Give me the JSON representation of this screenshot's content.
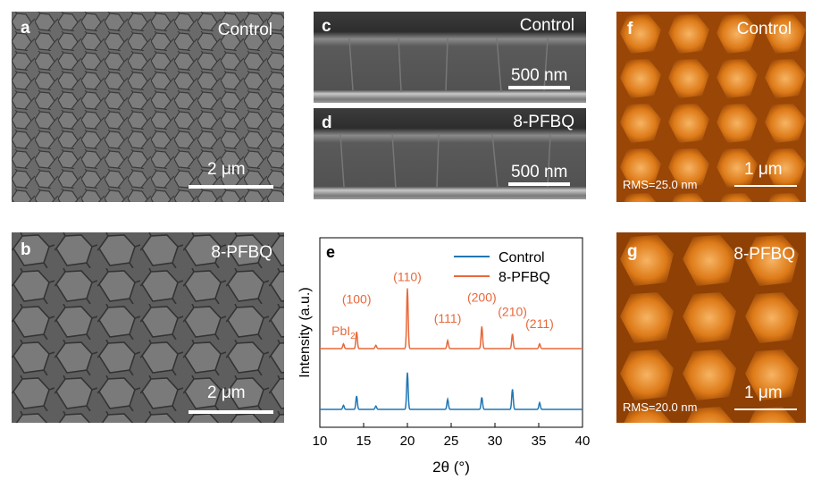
{
  "figure": {
    "panel_a": {
      "label": "a",
      "sample": "Control",
      "scalebar": "2 μm"
    },
    "panel_b": {
      "label": "b",
      "sample": "8-PFBQ",
      "scalebar": "2 μm"
    },
    "panel_c": {
      "label": "c",
      "sample": "Control",
      "scalebar": "500 nm"
    },
    "panel_d": {
      "label": "d",
      "sample": "8-PFBQ",
      "scalebar": "500 nm"
    },
    "panel_f": {
      "label": "f",
      "sample": "Control",
      "scalebar": "1 μm",
      "rms": "RMS=25.0 nm"
    },
    "panel_g": {
      "label": "g",
      "sample": "8-PFBQ",
      "scalebar": "1 μm",
      "rms": "RMS=20.0 nm"
    },
    "panel_e": {
      "label": "e"
    }
  },
  "colors": {
    "control": "#1f77b4",
    "pfbq": "#e8683a",
    "sem_gray": "#6e6e6e",
    "afm_orange": "#d9740f"
  },
  "chart_data": {
    "type": "line",
    "xlabel": "2θ (°)",
    "ylabel": "Intensity (a.u.)",
    "xlim": [
      10,
      40
    ],
    "xticks": [
      "10",
      "15",
      "20",
      "25",
      "30",
      "35",
      "40"
    ],
    "legend_position": "top-right",
    "series": [
      {
        "name": "Control",
        "color": "#1f77b4",
        "peaks": [
          [
            12.7,
            0.06
          ],
          [
            14.2,
            0.2
          ],
          [
            16.4,
            0.05
          ],
          [
            20.0,
            0.55
          ],
          [
            24.6,
            0.15
          ],
          [
            28.5,
            0.18
          ],
          [
            32.0,
            0.3
          ],
          [
            35.1,
            0.1
          ]
        ]
      },
      {
        "name": "8-PFBQ",
        "color": "#e8683a",
        "peaks": [
          [
            12.7,
            0.07
          ],
          [
            14.2,
            0.25
          ],
          [
            16.4,
            0.05
          ],
          [
            20.0,
            0.9
          ],
          [
            24.6,
            0.12
          ],
          [
            28.5,
            0.33
          ],
          [
            32.0,
            0.22
          ],
          [
            35.1,
            0.07
          ]
        ]
      }
    ],
    "annotations": [
      {
        "text": "PbI",
        "sub": "2",
        "x": 12.7
      },
      {
        "text": "(100)",
        "x": 14.2
      },
      {
        "text": "(110)",
        "x": 20.0
      },
      {
        "text": "(111)",
        "x": 24.6
      },
      {
        "text": "(200)",
        "x": 28.5
      },
      {
        "text": "(210)",
        "x": 32.0
      },
      {
        "text": "(211)",
        "x": 35.1
      }
    ]
  }
}
